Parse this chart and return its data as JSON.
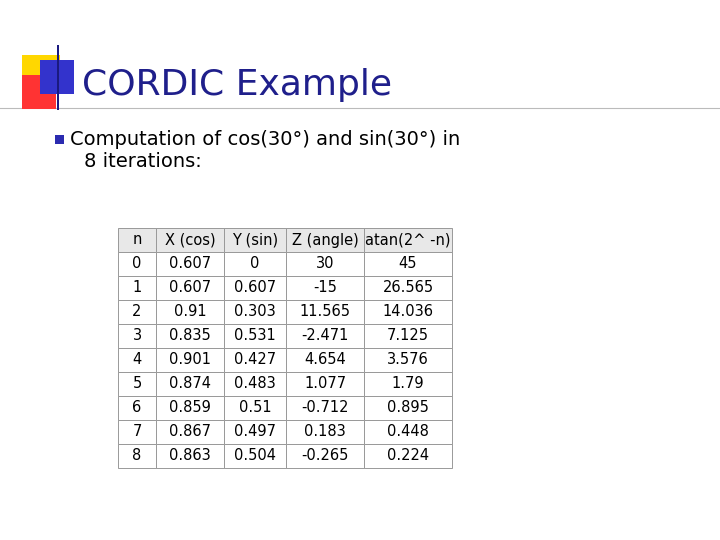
{
  "title": "CORDIC Example",
  "title_color": "#1F1F8B",
  "bullet_text_line1": "Computation of cos(30°) and sin(30°) in",
  "bullet_text_line2": "8 iterations:",
  "bg_color": "#FFFFFF",
  "table_headers": [
    "n",
    "X (cos)",
    "Y (sin)",
    "Z (angle)",
    "atan(2^ -n)"
  ],
  "table_data": [
    [
      "0",
      "0.607",
      "0",
      "30",
      "45"
    ],
    [
      "1",
      "0.607",
      "0.607",
      "-15",
      "26.565"
    ],
    [
      "2",
      "0.91",
      "0.303",
      "11.565",
      "14.036"
    ],
    [
      "3",
      "0.835",
      "0.531",
      "-2.471",
      "7.125"
    ],
    [
      "4",
      "0.901",
      "0.427",
      "4.654",
      "3.576"
    ],
    [
      "5",
      "0.874",
      "0.483",
      "1.077",
      "1.79"
    ],
    [
      "6",
      "0.859",
      "0.51",
      "-0.712",
      "0.895"
    ],
    [
      "7",
      "0.867",
      "0.497",
      "0.183",
      "0.448"
    ],
    [
      "8",
      "0.863",
      "0.504",
      "-0.265",
      "0.224"
    ]
  ],
  "header_bg": "#E8E8E8",
  "row_bg": "#FFFFFF",
  "table_border_color": "#999999",
  "accent_yellow": "#FFD700",
  "accent_red": "#FF3333",
  "accent_blue": "#3333CC",
  "accent_dark_blue": "#1A1A80",
  "bullet_color": "#2B2BB0",
  "font_size_title": 26,
  "font_size_bullet": 14,
  "font_size_table": 10.5
}
